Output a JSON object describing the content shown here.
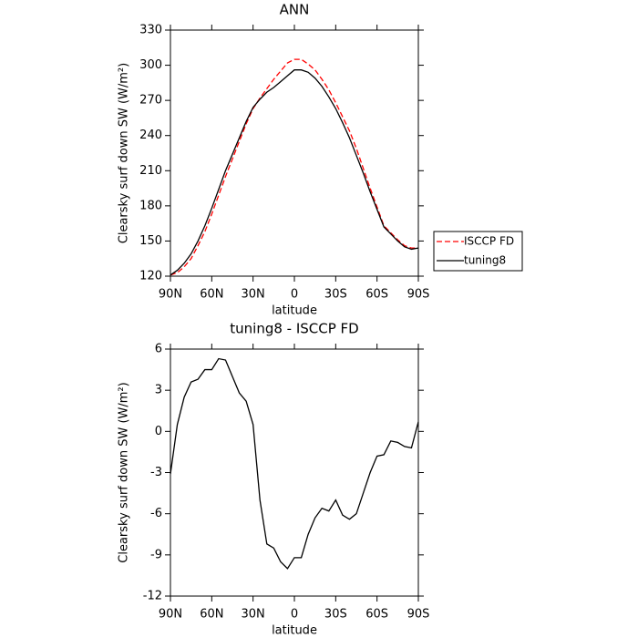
{
  "chart_data": [
    {
      "type": "line",
      "title": "ANN",
      "xlabel": "latitude",
      "ylabel": "Clearsky surf down SW (W/m²)",
      "x": [
        90,
        85,
        80,
        75,
        70,
        65,
        60,
        55,
        50,
        45,
        40,
        35,
        30,
        25,
        20,
        15,
        10,
        5,
        0,
        -5,
        -10,
        -15,
        -20,
        -25,
        -30,
        -35,
        -40,
        -45,
        -50,
        -55,
        -60,
        -65,
        -70,
        -75,
        -80,
        -85,
        -90
      ],
      "series": [
        {
          "name": "ISCCP FD",
          "color": "#ff0000",
          "dash": true,
          "values": [
            121,
            123,
            128,
            135,
            146,
            158,
            173,
            189,
            205,
            220,
            235,
            250,
            263,
            272,
            280,
            288,
            295,
            302,
            305,
            305,
            301,
            296,
            288,
            279,
            268,
            256,
            244,
            229,
            212,
            195,
            179,
            163,
            157,
            151,
            146,
            144,
            144
          ]
        },
        {
          "name": "tuning8",
          "color": "#000000",
          "dash": false,
          "values": [
            121,
            125,
            131,
            139,
            150,
            163,
            178,
            194,
            210,
            224,
            238,
            252,
            264,
            271,
            277,
            281,
            286,
            291,
            296,
            296,
            294,
            289,
            282,
            273,
            263,
            251,
            238,
            223,
            208,
            192,
            177,
            162,
            156,
            150,
            145,
            143,
            144
          ]
        }
      ],
      "xlim": [
        90,
        -90
      ],
      "xticks": [
        {
          "value": 90,
          "label": "90N"
        },
        {
          "value": 60,
          "label": "60N"
        },
        {
          "value": 30,
          "label": "30N"
        },
        0,
        {
          "value": -30,
          "label": "30S"
        },
        {
          "value": -60,
          "label": "60S"
        },
        {
          "value": -90,
          "label": "90S"
        }
      ],
      "ylim": [
        120,
        330
      ],
      "yticks": [
        120,
        150,
        180,
        210,
        240,
        270,
        300,
        330
      ],
      "legend": "outside-right"
    },
    {
      "type": "line",
      "title": "tuning8 - ISCCP FD",
      "xlabel": "latitude",
      "ylabel": "Clearsky surf down SW (W/m²)",
      "x": [
        90,
        85,
        80,
        75,
        70,
        65,
        60,
        55,
        50,
        45,
        40,
        35,
        30,
        25,
        20,
        15,
        10,
        5,
        0,
        -5,
        -10,
        -15,
        -20,
        -25,
        -30,
        -35,
        -40,
        -45,
        -50,
        -55,
        -60,
        -65,
        -70,
        -75,
        -80,
        -85,
        -90
      ],
      "series": [
        {
          "color": "#000000",
          "dash": false,
          "values": [
            -3.1,
            0.5,
            2.5,
            3.6,
            3.8,
            4.5,
            4.5,
            5.3,
            5.2,
            4.0,
            2.8,
            2.2,
            0.5,
            -5,
            -8.2,
            -8.5,
            -9.5,
            -10,
            -9.2,
            -9.2,
            -7.5,
            -6.3,
            -5.6,
            -5.8,
            -5.0,
            -6.1,
            -6.4,
            -6.0,
            -4.5,
            -3.0,
            -1.8,
            -1.7,
            -0.7,
            -0.8,
            -1.1,
            -1.2,
            0.7
          ]
        }
      ],
      "xlim": [
        90,
        -90
      ],
      "xticks": [
        {
          "value": 90,
          "label": "90N"
        },
        {
          "value": 60,
          "label": "60N"
        },
        {
          "value": 30,
          "label": "30N"
        },
        0,
        {
          "value": -30,
          "label": "30S"
        },
        {
          "value": -60,
          "label": "60S"
        },
        {
          "value": -90,
          "label": "90S"
        }
      ],
      "ylim": [
        -12,
        6
      ],
      "yticks": [
        -12,
        -9,
        -6,
        -3,
        0,
        3,
        6
      ]
    }
  ]
}
